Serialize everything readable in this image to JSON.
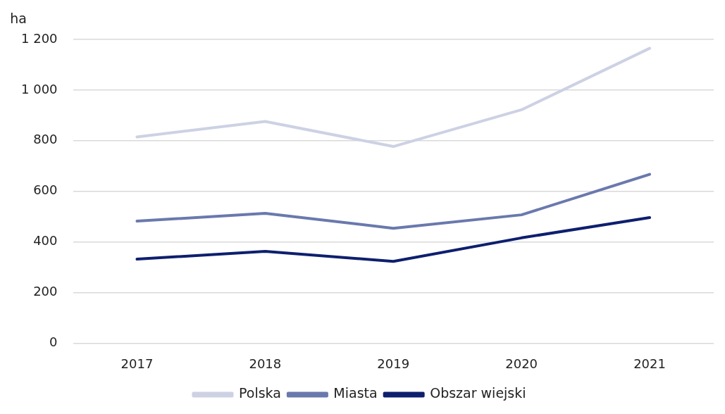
{
  "chart_data": {
    "type": "line",
    "ylabel": "ha",
    "categories": [
      "2017",
      "2018",
      "2019",
      "2020",
      "2021"
    ],
    "series": [
      {
        "name": "Polska",
        "color": "#cdd1e4",
        "values": [
          815,
          876,
          777,
          922,
          1165
        ]
      },
      {
        "name": "Miasta",
        "color": "#6a79ad",
        "values": [
          482,
          513,
          454,
          507,
          667
        ]
      },
      {
        "name": "Obszar wiejski",
        "color": "#0e1f6e",
        "values": [
          332,
          363,
          323,
          416,
          496
        ]
      }
    ],
    "ylim": [
      0,
      1200
    ],
    "yticks": [
      0,
      200,
      400,
      600,
      800,
      {
        "value": 1000,
        "label": "1 000"
      },
      {
        "value": 1200,
        "label": "1 200"
      }
    ],
    "grid": "y",
    "legend": "bottom",
    "marker": "none",
    "line_style": "solid"
  }
}
